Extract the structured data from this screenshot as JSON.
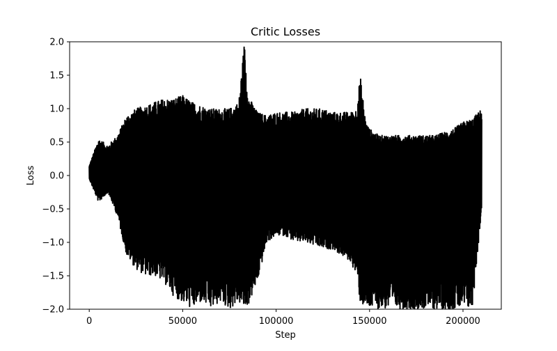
{
  "chart_data": {
    "type": "line",
    "title": "Critic Losses",
    "xlabel": "Step",
    "ylabel": "Loss",
    "xlim": [
      -10500,
      220500
    ],
    "ylim": [
      -2.0,
      2.0
    ],
    "x_ticks": [
      0,
      50000,
      100000,
      150000,
      200000
    ],
    "x_tick_labels": [
      "0",
      "50000",
      "100000",
      "150000",
      "200000"
    ],
    "y_ticks": [
      -2.0,
      -1.5,
      -1.0,
      -0.5,
      0.0,
      0.5,
      1.0,
      1.5,
      2.0
    ],
    "y_tick_labels": [
      "−2.0",
      "−1.5",
      "−1.0",
      "−0.5",
      "0.0",
      "0.5",
      "1.0",
      "1.5",
      "2.0"
    ],
    "grid": false,
    "legend": "none",
    "line_color": "#000000",
    "series": [
      {
        "x": [
          0,
          5000,
          10000,
          15000,
          20000,
          25000,
          30000,
          35000,
          40000,
          45000,
          50000,
          55000,
          60000,
          65000,
          70000,
          75000,
          80000,
          83000,
          85000,
          90000,
          95000,
          100000,
          105000,
          110000,
          115000,
          120000,
          125000,
          130000,
          135000,
          140000,
          143000,
          145000,
          148000,
          150000,
          155000,
          160000,
          165000,
          170000,
          175000,
          180000,
          185000,
          190000,
          195000,
          200000,
          205000,
          210000
        ],
        "upper": [
          0.15,
          0.55,
          0.45,
          0.6,
          0.9,
          1.0,
          1.05,
          1.1,
          1.15,
          1.15,
          1.2,
          1.1,
          1.05,
          1.0,
          1.0,
          1.0,
          1.1,
          2.0,
          1.2,
          0.95,
          0.9,
          0.95,
          0.95,
          0.95,
          1.0,
          1.0,
          1.0,
          0.95,
          0.95,
          0.95,
          1.0,
          1.5,
          0.8,
          0.7,
          0.6,
          0.6,
          0.6,
          0.6,
          0.6,
          0.6,
          0.6,
          0.65,
          0.7,
          0.8,
          0.85,
          1.0
        ],
        "lower": [
          -0.05,
          -0.4,
          -0.25,
          -0.6,
          -1.2,
          -1.4,
          -1.5,
          -1.5,
          -1.6,
          -1.8,
          -1.9,
          -2.0,
          -1.9,
          -2.0,
          -1.9,
          -2.0,
          -1.9,
          -2.0,
          -1.95,
          -1.6,
          -1.0,
          -0.9,
          -0.9,
          -1.0,
          -1.0,
          -1.05,
          -1.1,
          -1.1,
          -1.2,
          -1.3,
          -1.5,
          -1.9,
          -2.0,
          -2.0,
          -2.0,
          -2.0,
          -2.0,
          -2.0,
          -2.0,
          -2.0,
          -2.0,
          -2.0,
          -2.0,
          -2.0,
          -2.0,
          -0.5
        ]
      }
    ]
  }
}
